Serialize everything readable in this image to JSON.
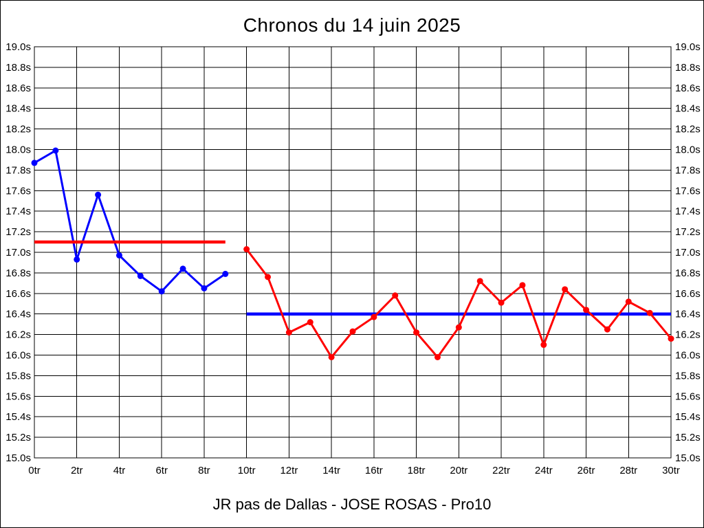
{
  "window": {
    "background_color": "#ffffff",
    "border_color": "#000000"
  },
  "chart_data": {
    "type": "line",
    "title": "Chronos du 14 juin 2025",
    "caption": "JR pas de Dallas - JOSE ROSAS - Pro10",
    "x_unit": "tr",
    "y_unit": "s",
    "xlim": [
      0,
      30
    ],
    "ylim": [
      15.0,
      19.0
    ],
    "grid": true,
    "legend": "none",
    "y_tick_values": [
      19.0,
      18.8,
      18.6,
      18.4,
      18.2,
      18.0,
      17.8,
      17.6,
      17.4,
      17.2,
      17.0,
      16.8,
      16.6,
      16.4,
      16.2,
      16.0,
      15.8,
      15.6,
      15.4,
      15.2,
      15.0
    ],
    "y_tick_labels": [
      "19.0s",
      "18.8s",
      "18.6s",
      "18.4s",
      "18.2s",
      "18.0s",
      "17.8s",
      "17.6s",
      "17.4s",
      "17.2s",
      "17.0s",
      "16.8s",
      "16.6s",
      "16.4s",
      "16.2s",
      "16.0s",
      "15.8s",
      "15.6s",
      "15.4s",
      "15.2s",
      "15.0s"
    ],
    "x_tick_values": [
      0,
      2,
      4,
      6,
      8,
      10,
      12,
      14,
      16,
      18,
      20,
      22,
      24,
      26,
      28,
      30
    ],
    "x_tick_labels": [
      "0tr",
      "2tr",
      "4tr",
      "6tr",
      "8tr",
      "10tr",
      "12tr",
      "14tr",
      "16tr",
      "18tr",
      "20tr",
      "22tr",
      "24tr",
      "26tr",
      "28tr",
      "30tr"
    ],
    "series": [
      {
        "name": "chronos-bleus",
        "color": "#0000ff",
        "x": [
          0,
          1,
          2,
          3,
          4,
          5,
          6,
          7,
          8,
          9
        ],
        "values": [
          17.87,
          17.99,
          16.93,
          17.56,
          16.97,
          16.77,
          16.62,
          16.84,
          16.65,
          16.79
        ]
      },
      {
        "name": "chronos-rouges",
        "color": "#ff0000",
        "x": [
          10,
          11,
          12,
          13,
          14,
          15,
          16,
          17,
          18,
          19,
          20,
          21,
          22,
          23,
          24,
          25,
          26,
          27,
          28,
          29,
          30
        ],
        "values": [
          17.03,
          16.76,
          16.22,
          16.32,
          15.98,
          16.23,
          16.37,
          16.58,
          16.22,
          15.98,
          16.27,
          16.72,
          16.51,
          16.68,
          16.1,
          16.64,
          16.44,
          16.25,
          16.52,
          16.41,
          16.16
        ]
      }
    ],
    "reference_lines": [
      {
        "name": "moyenne-chronos-bleus",
        "color": "#ff0000",
        "value": 17.1,
        "x_start": 0,
        "x_end": 9
      },
      {
        "name": "moyenne-chronos-rouges",
        "color": "#0000ff",
        "value": 16.4,
        "x_start": 10,
        "x_end": 30
      }
    ]
  }
}
